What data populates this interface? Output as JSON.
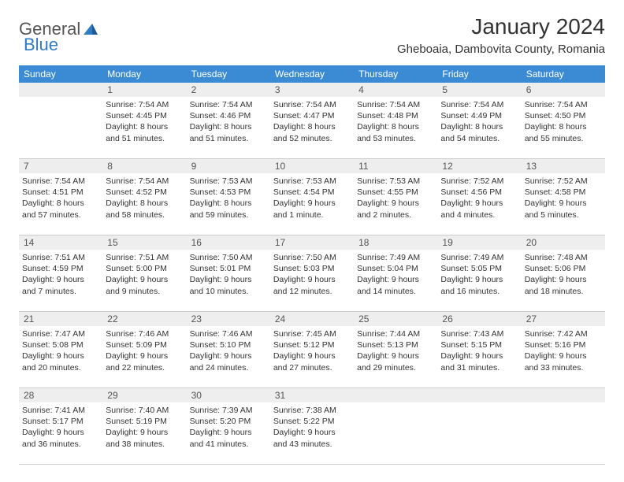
{
  "logo": {
    "general": "General",
    "blue": "Blue"
  },
  "title": "January 2024",
  "location": "Gheboaia, Dambovita County, Romania",
  "colors": {
    "header_bg": "#3b8bd4",
    "header_text": "#ffffff",
    "daynum_bg": "#eeeeee",
    "text": "#333333",
    "logo_gray": "#555555",
    "logo_blue": "#2e7cc4"
  },
  "weekdays": [
    "Sunday",
    "Monday",
    "Tuesday",
    "Wednesday",
    "Thursday",
    "Friday",
    "Saturday"
  ],
  "weeks": [
    {
      "nums": [
        "",
        "1",
        "2",
        "3",
        "4",
        "5",
        "6"
      ],
      "cells": [
        {
          "sunrise": "",
          "sunset": "",
          "daylight": ""
        },
        {
          "sunrise": "Sunrise: 7:54 AM",
          "sunset": "Sunset: 4:45 PM",
          "daylight": "Daylight: 8 hours and 51 minutes."
        },
        {
          "sunrise": "Sunrise: 7:54 AM",
          "sunset": "Sunset: 4:46 PM",
          "daylight": "Daylight: 8 hours and 51 minutes."
        },
        {
          "sunrise": "Sunrise: 7:54 AM",
          "sunset": "Sunset: 4:47 PM",
          "daylight": "Daylight: 8 hours and 52 minutes."
        },
        {
          "sunrise": "Sunrise: 7:54 AM",
          "sunset": "Sunset: 4:48 PM",
          "daylight": "Daylight: 8 hours and 53 minutes."
        },
        {
          "sunrise": "Sunrise: 7:54 AM",
          "sunset": "Sunset: 4:49 PM",
          "daylight": "Daylight: 8 hours and 54 minutes."
        },
        {
          "sunrise": "Sunrise: 7:54 AM",
          "sunset": "Sunset: 4:50 PM",
          "daylight": "Daylight: 8 hours and 55 minutes."
        }
      ]
    },
    {
      "nums": [
        "7",
        "8",
        "9",
        "10",
        "11",
        "12",
        "13"
      ],
      "cells": [
        {
          "sunrise": "Sunrise: 7:54 AM",
          "sunset": "Sunset: 4:51 PM",
          "daylight": "Daylight: 8 hours and 57 minutes."
        },
        {
          "sunrise": "Sunrise: 7:54 AM",
          "sunset": "Sunset: 4:52 PM",
          "daylight": "Daylight: 8 hours and 58 minutes."
        },
        {
          "sunrise": "Sunrise: 7:53 AM",
          "sunset": "Sunset: 4:53 PM",
          "daylight": "Daylight: 8 hours and 59 minutes."
        },
        {
          "sunrise": "Sunrise: 7:53 AM",
          "sunset": "Sunset: 4:54 PM",
          "daylight": "Daylight: 9 hours and 1 minute."
        },
        {
          "sunrise": "Sunrise: 7:53 AM",
          "sunset": "Sunset: 4:55 PM",
          "daylight": "Daylight: 9 hours and 2 minutes."
        },
        {
          "sunrise": "Sunrise: 7:52 AM",
          "sunset": "Sunset: 4:56 PM",
          "daylight": "Daylight: 9 hours and 4 minutes."
        },
        {
          "sunrise": "Sunrise: 7:52 AM",
          "sunset": "Sunset: 4:58 PM",
          "daylight": "Daylight: 9 hours and 5 minutes."
        }
      ]
    },
    {
      "nums": [
        "14",
        "15",
        "16",
        "17",
        "18",
        "19",
        "20"
      ],
      "cells": [
        {
          "sunrise": "Sunrise: 7:51 AM",
          "sunset": "Sunset: 4:59 PM",
          "daylight": "Daylight: 9 hours and 7 minutes."
        },
        {
          "sunrise": "Sunrise: 7:51 AM",
          "sunset": "Sunset: 5:00 PM",
          "daylight": "Daylight: 9 hours and 9 minutes."
        },
        {
          "sunrise": "Sunrise: 7:50 AM",
          "sunset": "Sunset: 5:01 PM",
          "daylight": "Daylight: 9 hours and 10 minutes."
        },
        {
          "sunrise": "Sunrise: 7:50 AM",
          "sunset": "Sunset: 5:03 PM",
          "daylight": "Daylight: 9 hours and 12 minutes."
        },
        {
          "sunrise": "Sunrise: 7:49 AM",
          "sunset": "Sunset: 5:04 PM",
          "daylight": "Daylight: 9 hours and 14 minutes."
        },
        {
          "sunrise": "Sunrise: 7:49 AM",
          "sunset": "Sunset: 5:05 PM",
          "daylight": "Daylight: 9 hours and 16 minutes."
        },
        {
          "sunrise": "Sunrise: 7:48 AM",
          "sunset": "Sunset: 5:06 PM",
          "daylight": "Daylight: 9 hours and 18 minutes."
        }
      ]
    },
    {
      "nums": [
        "21",
        "22",
        "23",
        "24",
        "25",
        "26",
        "27"
      ],
      "cells": [
        {
          "sunrise": "Sunrise: 7:47 AM",
          "sunset": "Sunset: 5:08 PM",
          "daylight": "Daylight: 9 hours and 20 minutes."
        },
        {
          "sunrise": "Sunrise: 7:46 AM",
          "sunset": "Sunset: 5:09 PM",
          "daylight": "Daylight: 9 hours and 22 minutes."
        },
        {
          "sunrise": "Sunrise: 7:46 AM",
          "sunset": "Sunset: 5:10 PM",
          "daylight": "Daylight: 9 hours and 24 minutes."
        },
        {
          "sunrise": "Sunrise: 7:45 AM",
          "sunset": "Sunset: 5:12 PM",
          "daylight": "Daylight: 9 hours and 27 minutes."
        },
        {
          "sunrise": "Sunrise: 7:44 AM",
          "sunset": "Sunset: 5:13 PM",
          "daylight": "Daylight: 9 hours and 29 minutes."
        },
        {
          "sunrise": "Sunrise: 7:43 AM",
          "sunset": "Sunset: 5:15 PM",
          "daylight": "Daylight: 9 hours and 31 minutes."
        },
        {
          "sunrise": "Sunrise: 7:42 AM",
          "sunset": "Sunset: 5:16 PM",
          "daylight": "Daylight: 9 hours and 33 minutes."
        }
      ]
    },
    {
      "nums": [
        "28",
        "29",
        "30",
        "31",
        "",
        "",
        ""
      ],
      "cells": [
        {
          "sunrise": "Sunrise: 7:41 AM",
          "sunset": "Sunset: 5:17 PM",
          "daylight": "Daylight: 9 hours and 36 minutes."
        },
        {
          "sunrise": "Sunrise: 7:40 AM",
          "sunset": "Sunset: 5:19 PM",
          "daylight": "Daylight: 9 hours and 38 minutes."
        },
        {
          "sunrise": "Sunrise: 7:39 AM",
          "sunset": "Sunset: 5:20 PM",
          "daylight": "Daylight: 9 hours and 41 minutes."
        },
        {
          "sunrise": "Sunrise: 7:38 AM",
          "sunset": "Sunset: 5:22 PM",
          "daylight": "Daylight: 9 hours and 43 minutes."
        },
        {
          "sunrise": "",
          "sunset": "",
          "daylight": ""
        },
        {
          "sunrise": "",
          "sunset": "",
          "daylight": ""
        },
        {
          "sunrise": "",
          "sunset": "",
          "daylight": ""
        }
      ]
    }
  ]
}
